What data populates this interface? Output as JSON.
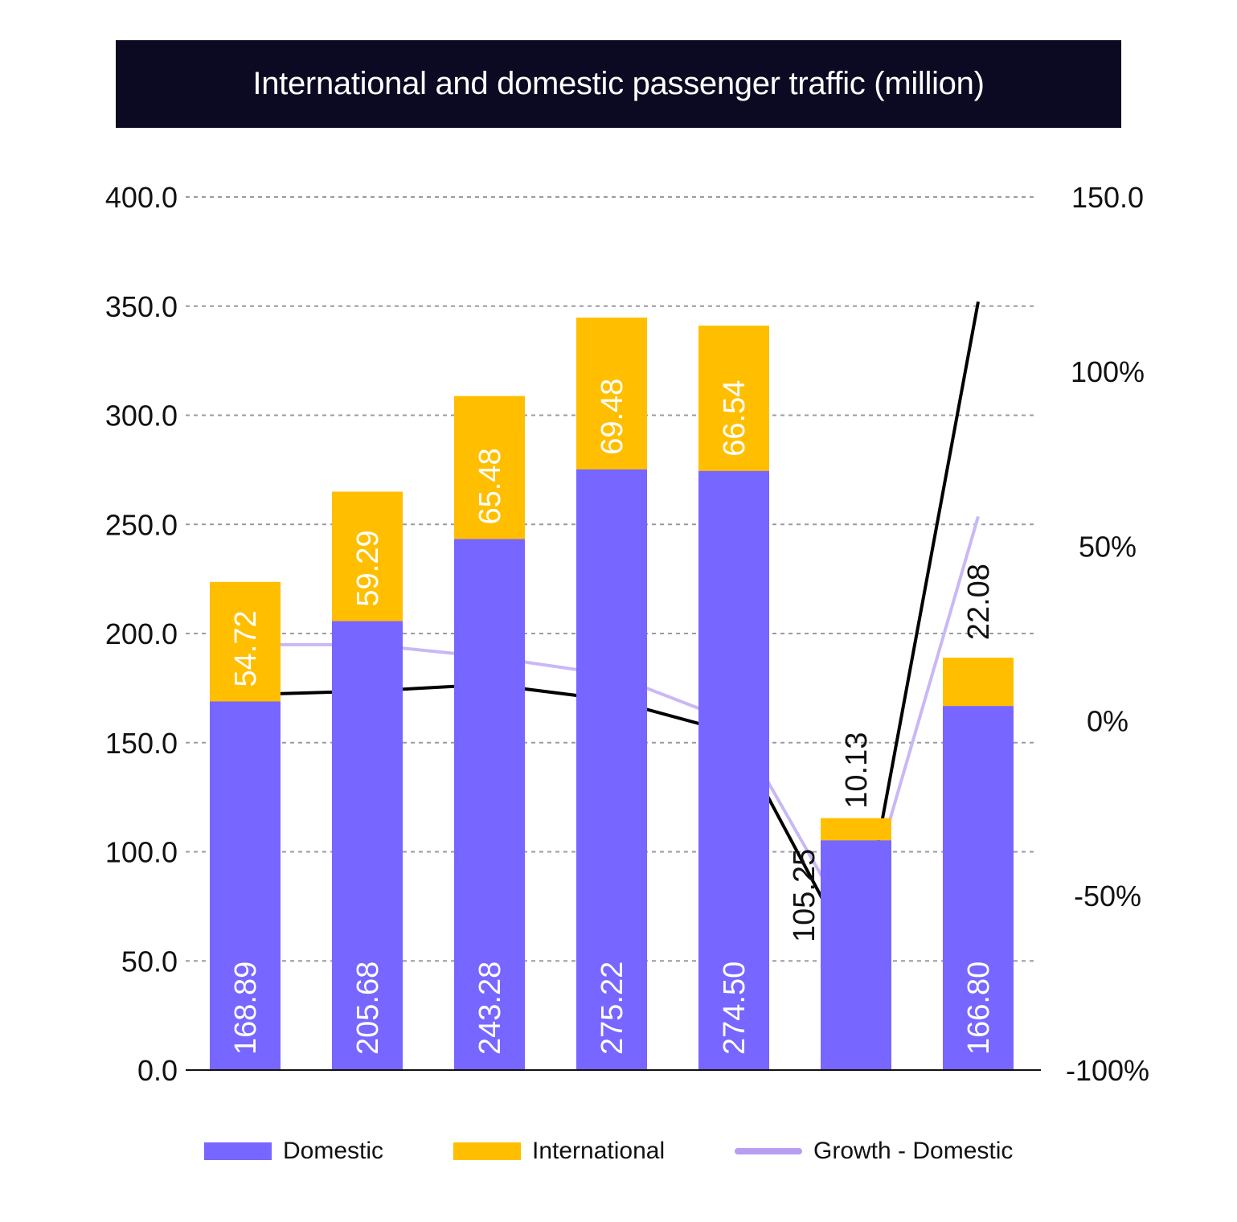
{
  "title": "International and domestic passenger traffic (million)",
  "chart_data": {
    "type": "bar",
    "stacked": true,
    "categories": [
      "",
      "",
      "",
      "",
      "",
      "",
      ""
    ],
    "series": [
      {
        "name": "Domestic",
        "color": "#7766ff",
        "values": [
          168.89,
          205.68,
          243.28,
          275.22,
          274.5,
          105.25,
          166.8
        ],
        "labels": [
          "168.89",
          "205.68",
          "243.28",
          "275.22",
          "274.50",
          "105.25",
          "166.80"
        ]
      },
      {
        "name": "International",
        "color": "#ffbf00",
        "values": [
          54.72,
          59.29,
          65.48,
          69.48,
          66.54,
          10.13,
          22.08
        ],
        "labels": [
          "54.72",
          "59.29",
          "65.48",
          "69.48",
          "66.54",
          "10.13",
          "22.08"
        ]
      }
    ],
    "lines": [
      {
        "name": "Growth - Domestic",
        "color": "#c9b8f5",
        "axis": "right",
        "values": [
          21.8,
          21.8,
          18.3,
          13.2,
          -0.3,
          -61.7,
          58.5
        ]
      },
      {
        "name": "",
        "color": "#000000",
        "axis": "right",
        "values": [
          7.5,
          8.5,
          10.4,
          6.0,
          -3.5,
          -69.0,
          120.0
        ]
      }
    ],
    "y_left": {
      "min": 0,
      "max": 400,
      "ticks": [
        0,
        50,
        100,
        150,
        200,
        250,
        300,
        350,
        400
      ],
      "tick_labels": [
        "0.0",
        "50.0",
        "100.0",
        "150.0",
        "200.0",
        "250.0",
        "300.0",
        "350.0",
        "400.0"
      ]
    },
    "y_right": {
      "min": -100,
      "max": 150,
      "ticks": [
        -100,
        -50,
        0,
        50,
        100,
        150
      ],
      "tick_labels": [
        "-100%",
        "-50%",
        "0%",
        "50%",
        "100%",
        "150.0"
      ]
    },
    "grid": true,
    "legend_position": "bottom"
  },
  "legend": {
    "domestic": "Domestic",
    "international": "International",
    "growth_domestic": "Growth - Domestic"
  }
}
